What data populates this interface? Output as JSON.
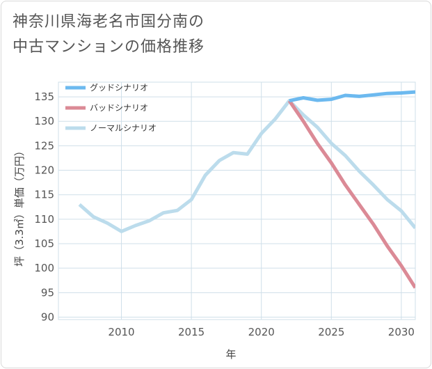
{
  "title": {
    "line1": "神奈川県海老名市国分南の",
    "line2": "中古マンションの価格推移"
  },
  "colors": {
    "good": "#6cb9ef",
    "bad": "#db8a96",
    "normal": "#bcdcec",
    "grid": "#cfdfe9",
    "axis_text": "#555555"
  },
  "chart_data": {
    "type": "line",
    "title": "神奈川県海老名市国分南の中古マンションの価格推移",
    "xlabel": "年",
    "ylabel": "坪（3.3㎡）単価（万円）",
    "xlim": [
      2005.5,
      2031
    ],
    "ylim": [
      89.5,
      138
    ],
    "x_ticks": [
      2010,
      2015,
      2020,
      2025,
      2030
    ],
    "y_ticks": [
      90,
      95,
      100,
      105,
      110,
      115,
      120,
      125,
      130,
      135
    ],
    "grid": true,
    "legend_position": "top-left",
    "series": [
      {
        "name": "グッドシナリオ",
        "color": "#6cb9ef",
        "x": [
          2022,
          2023,
          2024,
          2025,
          2026,
          2027,
          2028,
          2029,
          2030,
          2031
        ],
        "values": [
          134.2,
          134.8,
          134.3,
          134.5,
          135.3,
          135.1,
          135.4,
          135.7,
          135.8,
          136.0
        ]
      },
      {
        "name": "バッドシナリオ",
        "color": "#db8a96",
        "x": [
          2022,
          2023,
          2024,
          2025,
          2026,
          2027,
          2028,
          2029,
          2030,
          2031
        ],
        "values": [
          134.2,
          130.0,
          125.5,
          121.5,
          117.0,
          113.0,
          109.0,
          104.5,
          100.5,
          96.0
        ]
      },
      {
        "name": "ノーマルシナリオ",
        "color": "#bcdcec",
        "x": [
          2007,
          2008,
          2009,
          2010,
          2011,
          2012,
          2013,
          2014,
          2015,
          2016,
          2017,
          2018,
          2019,
          2020,
          2021,
          2022,
          2023,
          2024,
          2025,
          2026,
          2027,
          2028,
          2029,
          2030,
          2031
        ],
        "values": [
          113.0,
          110.5,
          109.2,
          107.5,
          108.7,
          109.7,
          111.3,
          111.8,
          114.0,
          119.0,
          122.0,
          123.6,
          123.3,
          127.5,
          130.5,
          134.2,
          131.3,
          128.8,
          125.5,
          123.0,
          119.8,
          117.0,
          114.0,
          111.7,
          108.2
        ]
      }
    ]
  }
}
